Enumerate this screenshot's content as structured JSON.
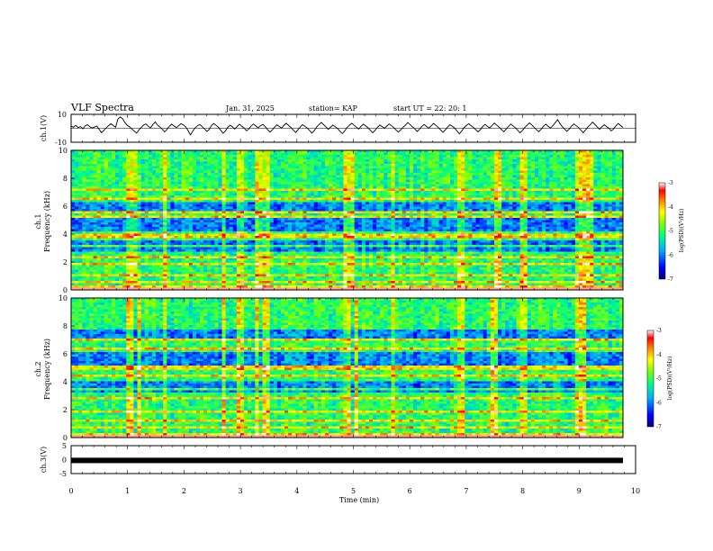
{
  "header": {
    "title": "VLF Spectra",
    "date": "Jan. 31, 2025",
    "station": "station= KAP",
    "start": "start  UT =  22: 20: 1"
  },
  "chart_data": [
    {
      "type": "line",
      "name": "ch.1 waveform",
      "ylabel": "ch.1(V)",
      "ylim": [
        -10,
        10
      ],
      "yticks": [
        "10",
        "-10"
      ],
      "xlim": [
        0,
        10
      ],
      "y": [
        1.5,
        0.8,
        2.1,
        0.5,
        1.2,
        -0.3,
        1.8,
        2.6,
        1.1,
        0.2,
        0.9,
        1.6,
        -0.8,
        -3.1,
        -1.5,
        0.4,
        1.9,
        3.2,
        2.0,
        0.7,
        6.5,
        8.2,
        7.0,
        4.1,
        2.2,
        1.0,
        -0.5,
        -2.0,
        -3.5,
        -1.2,
        0.6,
        2.4,
        3.1,
        1.5,
        0.3,
        2.8,
        4.5,
        2.2,
        0.9,
        -0.7,
        -2.6,
        -0.8,
        1.4,
        2.9,
        1.7,
        0.5,
        1.9,
        3.3,
        2.4,
        1.0,
        -1.6,
        -4.8,
        -2.1,
        0.3,
        1.8,
        2.7,
        1.2,
        -0.4,
        -2.2,
        -0.9,
        2.0,
        3.4,
        2.1,
        0.8,
        -1.4,
        -3.6,
        -1.8,
        0.6,
        2.2,
        1.0,
        -0.6,
        1.3,
        2.9,
        1.4,
        0.2,
        -1.8,
        -0.5,
        1.7,
        3.0,
        1.6,
        0.4,
        1.9,
        2.8,
        1.2,
        -0.9,
        -2.7,
        -1.1,
        0.8,
        2.5,
        1.3,
        0.1,
        2.2,
        3.6,
        2.0,
        0.6,
        -1.3,
        -3.0,
        -1.0,
        1.1,
        2.6,
        1.5,
        0.2,
        -1.6,
        -3.4,
        -1.7,
        0.9,
        2.7,
        4.2,
        2.6,
        1.0,
        -0.8,
        0.9,
        2.3,
        1.1,
        -0.2,
        -2.1,
        -3.8,
        -1.9,
        0.5,
        2.1,
        3.7,
        2.2,
        0.8,
        -0.6,
        1.5,
        2.9,
        1.6,
        0.3,
        -1.5,
        -3.2,
        -1.4,
        0.7,
        2.4,
        1.2,
        0.0,
        1.6,
        3.1,
        1.8,
        0.5,
        -1.2,
        -2.8,
        -1.0,
        0.8,
        2.3,
        4.1,
        2.5,
        1.1,
        -0.4,
        -2.3,
        -0.6,
        1.4,
        2.7,
        1.3,
        0.1,
        1.8,
        3.5,
        2.1,
        0.6,
        -1.1,
        -2.9,
        -1.2,
        0.9,
        2.5,
        1.4,
        0.2,
        -1.9,
        -4.0,
        -2.0,
        0.4,
        2.0,
        3.3,
        1.9,
        0.7,
        -0.9,
        -2.6,
        -0.9,
        1.2,
        2.8,
        1.5,
        0.3,
        2.0,
        3.8,
        2.3,
        0.9,
        -0.8,
        -2.5,
        -0.7,
        1.3,
        3.0,
        1.7,
        0.4,
        -1.4,
        -3.3,
        -1.5,
        0.6,
        2.2,
        3.9,
        2.4,
        0.8,
        -1.0,
        -2.4,
        -0.6,
        1.5,
        2.9,
        1.4,
        0.2,
        1.9,
        4.0,
        6.2,
        3.5,
        1.2,
        -0.5,
        -2.2,
        -0.5,
        1.6,
        3.1,
        1.8,
        0.5,
        -1.3,
        -3.1,
        -1.2,
        0.9,
        2.6,
        4.4,
        2.7,
        1.0,
        -0.7,
        1.1,
        2.5,
        1.2,
        0.0,
        -1.9,
        -0.4,
        1.8,
        3.4,
        2.0,
        0.6
      ],
      "hline": 0
    },
    {
      "type": "heatmap",
      "name": "ch.1 spectrogram",
      "ylabel_channel": "ch.1",
      "ylabel": "Frequency (kHz)",
      "ylim": [
        0,
        10
      ],
      "yticks": [
        "0",
        "2",
        "4",
        "6",
        "8",
        "10"
      ],
      "xlim": [
        0,
        10
      ],
      "colorbar": {
        "label": "log(PSD)(V²/Hz)",
        "range": [
          -7,
          -3
        ],
        "ticks": [
          "-3",
          "-4",
          "-5",
          "-6",
          "-7"
        ]
      },
      "low_bands_khz": [
        [
          2.7,
          3.6
        ],
        [
          4.2,
          5.2
        ],
        [
          5.6,
          6.3
        ]
      ],
      "bright_lines_khz": [
        0.3,
        0.6,
        1.1,
        1.9,
        2.3,
        3.2,
        3.8,
        4.0,
        5.3,
        5.5,
        6.5,
        7.2
      ],
      "bursts_min": [
        1.05,
        1.15,
        1.65,
        2.7,
        3.0,
        3.3,
        3.35,
        3.45,
        4.9,
        5.0,
        5.7,
        6.9,
        7.55,
        8.0,
        8.95,
        9.05,
        9.2
      ]
    },
    {
      "type": "heatmap",
      "name": "ch.2 spectrogram",
      "ylabel_channel": "ch.2",
      "ylabel": "Frequency (kHz)",
      "ylim": [
        0,
        10
      ],
      "yticks": [
        "0",
        "2",
        "4",
        "6",
        "8",
        "10"
      ],
      "xlim": [
        0,
        10
      ],
      "colorbar": {
        "label": "log(PSD)(V²/Hz)",
        "range": [
          -7,
          -3
        ],
        "ticks": [
          "-3",
          "-4",
          "-5",
          "-6",
          "-7"
        ]
      },
      "low_bands_khz": [
        [
          3.3,
          4.1
        ],
        [
          5.2,
          6.1
        ],
        [
          7.1,
          7.8
        ]
      ],
      "bright_lines_khz": [
        0.3,
        0.7,
        1.2,
        1.9,
        2.8,
        3.4,
        4.5,
        5.0,
        6.4,
        7.0
      ],
      "bursts_min": [
        1.05,
        1.2,
        1.65,
        2.7,
        3.0,
        3.3,
        3.45,
        4.9,
        5.05,
        5.7,
        6.9,
        7.5,
        8.0,
        9.0,
        9.1
      ]
    },
    {
      "type": "line",
      "name": "ch.3 level",
      "ylabel": "ch.3(V)",
      "ylim": [
        -5,
        5
      ],
      "yticks": [
        "5",
        "0",
        "-5"
      ],
      "xlim": [
        0,
        10
      ],
      "constant_value": -0.3,
      "xlabel": "Time (min)",
      "xticks": [
        "0",
        "1",
        "2",
        "3",
        "4",
        "5",
        "6",
        "7",
        "8",
        "9",
        "10"
      ]
    }
  ]
}
